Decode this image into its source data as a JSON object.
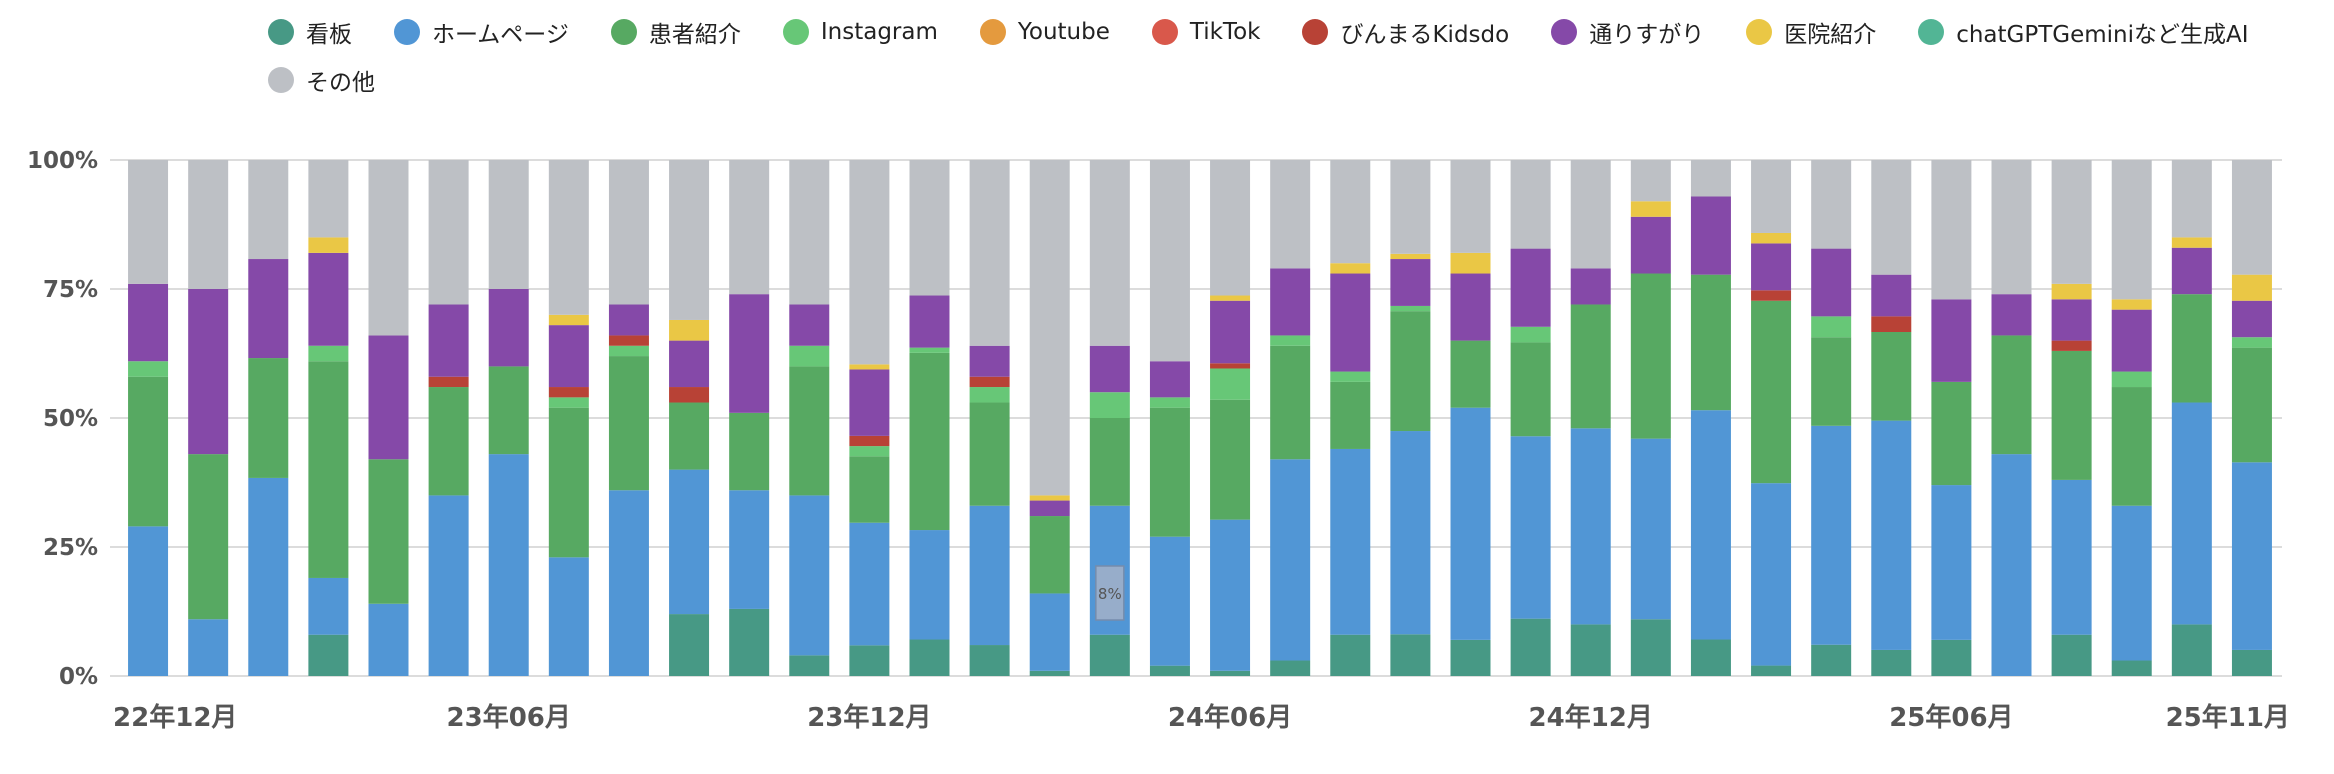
{
  "chart_data": {
    "type": "bar",
    "stacked": true,
    "normalized": true,
    "title": "",
    "xlabel": "",
    "ylabel": "",
    "ylim": [
      0,
      100
    ],
    "y_ticks": [
      "0%",
      "25%",
      "50%",
      "75%",
      "100%"
    ],
    "y_tick_values": [
      0,
      25,
      50,
      75,
      100
    ],
    "x_tick_labels": [
      {
        "index": 0,
        "label": "22年12月"
      },
      {
        "index": 6,
        "label": "23年06月"
      },
      {
        "index": 12,
        "label": "23年12月"
      },
      {
        "index": 18,
        "label": "24年06月"
      },
      {
        "index": 24,
        "label": "24年12月"
      },
      {
        "index": 30,
        "label": "25年06月"
      },
      {
        "index": 35,
        "label": "25年11月"
      }
    ],
    "categories": [
      "22-12",
      "23-01",
      "23-02",
      "23-03",
      "23-04",
      "23-05",
      "23-06",
      "23-07",
      "23-08",
      "23-09",
      "23-10",
      "23-11",
      "23-12",
      "24-01",
      "24-02",
      "24-03",
      "24-04",
      "24-05",
      "24-06",
      "24-07",
      "24-08",
      "24-09",
      "24-10",
      "24-11",
      "24-12",
      "25-01",
      "25-02",
      "25-03",
      "25-04",
      "25-05",
      "25-06",
      "25-07",
      "25-08",
      "25-09",
      "25-10",
      "25-11"
    ],
    "series": [
      {
        "name": "看板",
        "color": "#479985",
        "values": [
          0,
          0,
          0,
          8,
          0,
          0,
          0,
          0,
          0,
          12,
          13,
          4,
          6,
          7,
          6,
          1,
          8,
          2,
          1,
          3,
          8,
          8,
          7,
          11,
          10,
          11,
          7,
          2,
          6,
          5,
          7,
          0,
          8,
          3,
          10,
          5
        ]
      },
      {
        "name": "ホームページ",
        "color": "#5196d5",
        "values": [
          29,
          11,
          38,
          11,
          14,
          35,
          43,
          23,
          36,
          28,
          23,
          31,
          24,
          21,
          27,
          15,
          25,
          25,
          29,
          39,
          36,
          39,
          45,
          35,
          38,
          35,
          44,
          35,
          42,
          44,
          30,
          43,
          30,
          30,
          43,
          36
        ]
      },
      {
        "name": "患者紹介",
        "color": "#57a962",
        "values": [
          29,
          32,
          23,
          42,
          28,
          21,
          17,
          29,
          26,
          13,
          15,
          25,
          13,
          34,
          20,
          15,
          17,
          25,
          23,
          22,
          13,
          23,
          13,
          18,
          24,
          32,
          26,
          35,
          17,
          17,
          20,
          23,
          25,
          23,
          21,
          22
        ]
      },
      {
        "name": "Instagram",
        "color": "#67c777",
        "values": [
          3,
          0,
          0,
          3,
          0,
          0,
          0,
          2,
          2,
          0,
          0,
          4,
          2,
          1,
          3,
          0,
          5,
          2,
          6,
          2,
          2,
          1,
          0,
          3,
          0,
          0,
          0,
          0,
          4,
          0,
          0,
          0,
          0,
          3,
          0,
          2
        ]
      },
      {
        "name": "Youtube",
        "color": "#e49a3e",
        "values": [
          0,
          0,
          0,
          0,
          0,
          0,
          0,
          0,
          0,
          0,
          0,
          0,
          0,
          0,
          0,
          0,
          0,
          0,
          0,
          0,
          0,
          0,
          0,
          0,
          0,
          0,
          0,
          0,
          0,
          0,
          0,
          0,
          0,
          0,
          0,
          0
        ]
      },
      {
        "name": "TikTok",
        "color": "#d9584b",
        "values": [
          0,
          0,
          0,
          0,
          0,
          0,
          0,
          0,
          0,
          0,
          0,
          0,
          0,
          0,
          0,
          0,
          0,
          0,
          0,
          0,
          0,
          0,
          0,
          0,
          0,
          0,
          0,
          0,
          0,
          0,
          0,
          0,
          0,
          0,
          0,
          0
        ]
      },
      {
        "name": "びんまるKidsdo",
        "color": "#b84236",
        "values": [
          0,
          0,
          0,
          0,
          0,
          2,
          0,
          2,
          2,
          3,
          0,
          0,
          2,
          0,
          2,
          0,
          0,
          0,
          1,
          0,
          0,
          0,
          0,
          0,
          0,
          0,
          0,
          2,
          0,
          3,
          0,
          0,
          2,
          0,
          0,
          0
        ]
      },
      {
        "name": "通りすがり",
        "color": "#8549a8",
        "values": [
          15,
          32,
          19,
          18,
          24,
          14,
          15,
          12,
          6,
          9,
          23,
          8,
          13,
          10,
          6,
          3,
          9,
          7,
          12,
          13,
          19,
          9,
          13,
          15,
          7,
          11,
          15,
          9,
          13,
          8,
          16,
          8,
          8,
          12,
          9,
          7
        ]
      },
      {
        "name": "医院紹介",
        "color": "#eac745",
        "values": [
          0,
          0,
          0,
          3,
          0,
          0,
          0,
          2,
          0,
          4,
          0,
          0,
          1,
          0,
          0,
          1,
          0,
          0,
          1,
          0,
          2,
          1,
          4,
          0,
          0,
          3,
          0,
          2,
          0,
          0,
          0,
          0,
          3,
          2,
          2,
          5
        ]
      },
      {
        "name": "chatGPTGeminiなど生成AI",
        "color": "#52b595",
        "values": [
          0,
          0,
          0,
          0,
          0,
          0,
          0,
          0,
          0,
          0,
          0,
          0,
          0,
          0,
          0,
          0,
          0,
          0,
          0,
          0,
          0,
          0,
          0,
          0,
          0,
          0,
          0,
          0,
          0,
          0,
          0,
          0,
          0,
          0,
          0,
          0
        ]
      },
      {
        "name": "その他",
        "color": "#bdc0c5",
        "values": [
          24,
          25,
          19,
          15,
          34,
          28,
          25,
          30,
          28,
          31,
          26,
          28,
          40,
          26,
          36,
          65,
          36,
          39,
          26,
          21,
          20,
          18,
          18,
          17,
          21,
          8,
          7,
          14,
          17,
          22,
          27,
          26,
          24,
          27,
          15,
          22
        ]
      }
    ],
    "tooltip": {
      "index": 16,
      "text": "8%"
    }
  }
}
